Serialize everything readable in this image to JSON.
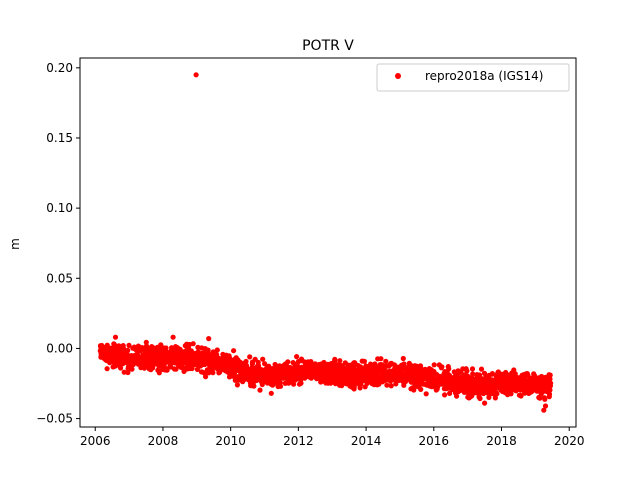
{
  "chart_data": {
    "type": "scatter",
    "title": "POTR V",
    "xlabel": "",
    "ylabel": "m",
    "xlim": [
      2005.55,
      2020.2
    ],
    "ylim": [
      -0.056,
      0.207
    ],
    "x_ticks": [
      2006,
      2008,
      2010,
      2012,
      2014,
      2016,
      2018,
      2020
    ],
    "y_ticks": [
      -0.05,
      0.0,
      0.05,
      0.1,
      0.15,
      0.2
    ],
    "y_tick_labels": [
      "−0.05",
      "0.00",
      "0.05",
      "0.10",
      "0.15",
      "0.20"
    ],
    "legend": {
      "placement": "upper-right"
    },
    "grid": false,
    "series": [
      {
        "name": "repro2018a (IGS14)",
        "color": "#ff0000",
        "marker": "circle",
        "x_range": [
          2006.15,
          2019.45
        ],
        "trend": [
          [
            2006.15,
            -0.004
          ],
          [
            2007.0,
            -0.006
          ],
          [
            2008.0,
            -0.007
          ],
          [
            2009.0,
            -0.008
          ],
          [
            2010.0,
            -0.012
          ],
          [
            2010.5,
            -0.017
          ],
          [
            2011.0,
            -0.019
          ],
          [
            2012.0,
            -0.017
          ],
          [
            2012.5,
            -0.015
          ],
          [
            2013.0,
            -0.019
          ],
          [
            2014.0,
            -0.019
          ],
          [
            2015.0,
            -0.018
          ],
          [
            2016.0,
            -0.022
          ],
          [
            2016.5,
            -0.023
          ],
          [
            2017.0,
            -0.026
          ],
          [
            2018.0,
            -0.025
          ],
          [
            2019.0,
            -0.026
          ],
          [
            2019.45,
            -0.028
          ]
        ],
        "spread": 0.0075,
        "outliers": [
          [
            2008.98,
            0.195
          ],
          [
            2006.6,
            0.008
          ],
          [
            2008.3,
            0.008
          ],
          [
            2009.35,
            0.007
          ],
          [
            2016.8,
            -0.017
          ],
          [
            2017.5,
            -0.039
          ],
          [
            2019.25,
            -0.044
          ],
          [
            2019.3,
            -0.041
          ],
          [
            2010.2,
            -0.026
          ],
          [
            2011.2,
            -0.032
          ]
        ]
      }
    ]
  }
}
